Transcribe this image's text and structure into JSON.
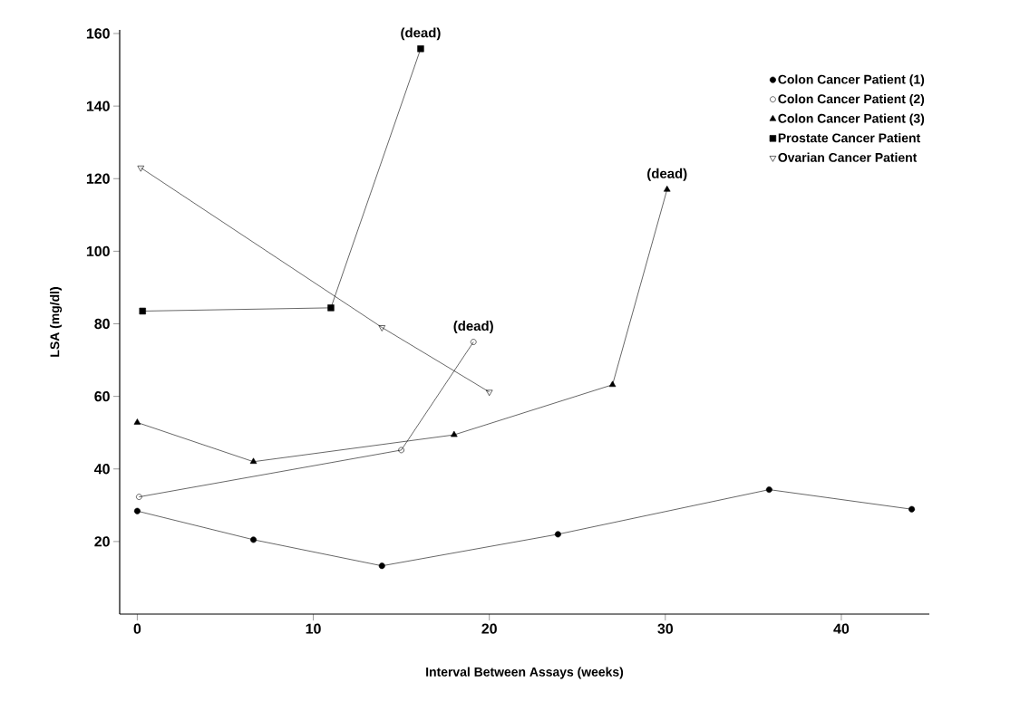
{
  "chart_data": {
    "type": "line",
    "xlabel": "Interval Between Assays (weeks)",
    "ylabel": "LSA (mg/dl)",
    "xlim": [
      -1,
      45
    ],
    "ylim": [
      0,
      161
    ],
    "xticks": [
      0,
      10,
      20,
      30,
      40
    ],
    "yticks": [
      20,
      40,
      60,
      80,
      100,
      120,
      140,
      160
    ],
    "grid": false,
    "legend": "top right",
    "line_style": "solid",
    "series": [
      {
        "name": "Colon Cancer Patient (1)",
        "color": "#000000",
        "marker": "circle",
        "x": [
          0,
          6.6,
          13.9,
          23.9,
          35.9,
          44
        ],
        "values": [
          28.4,
          20.5,
          13.3,
          22,
          34.3,
          28.9
        ]
      },
      {
        "name": "Colon Cancer Patient (2)",
        "color": "#000000",
        "marker": "circle-open",
        "x": [
          0.1,
          15,
          19.1
        ],
        "values": [
          32.3,
          45.2,
          75
        ]
      },
      {
        "name": "Colon Cancer Patient (3)",
        "color": "#000000",
        "marker": "triangle",
        "x": [
          0,
          6.6,
          18,
          27,
          30.1
        ],
        "values": [
          52.8,
          42,
          49.4,
          63.2,
          117
        ]
      },
      {
        "name": "Prostate Cancer Patient",
        "color": "#000000",
        "marker": "square",
        "x": [
          0.3,
          11,
          16.1
        ],
        "values": [
          83.5,
          84.4,
          155.8
        ]
      },
      {
        "name": "Ovarian Cancer Patient",
        "color": "#000000",
        "marker": "triangle-down-open",
        "x": [
          0.2,
          13.9,
          20
        ],
        "values": [
          123,
          79,
          61.2
        ]
      }
    ],
    "annotations": [
      {
        "text": "(dead)",
        "x": 16.1,
        "y": 155.8
      },
      {
        "text": "(dead)",
        "x": 19.1,
        "y": 75
      },
      {
        "text": "(dead)",
        "x": 30.1,
        "y": 117
      }
    ]
  }
}
